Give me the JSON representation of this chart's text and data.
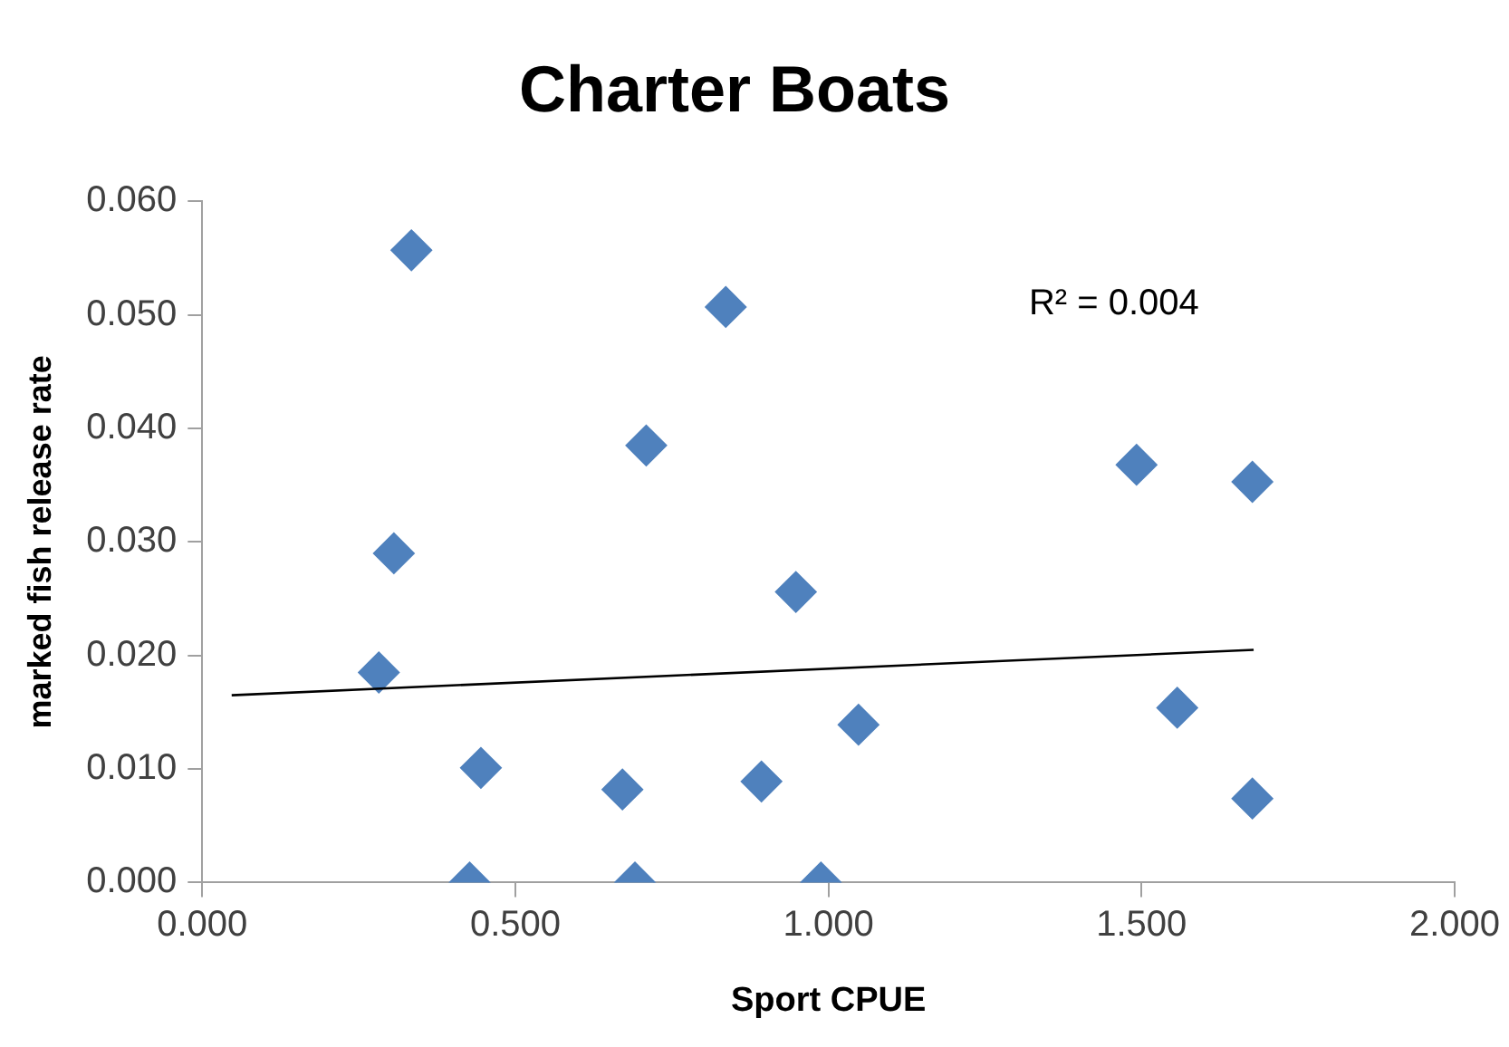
{
  "chart_data": {
    "type": "scatter",
    "title": "Charter Boats",
    "xlabel": "Sport CPUE",
    "ylabel": "marked fish release rate",
    "annotations": [
      "R² = 0.004"
    ],
    "series": [
      {
        "color": "#4f81bd",
        "marker": "diamond",
        "x": [
          0.334,
          0.836,
          0.709,
          0.306,
          0.948,
          0.282,
          0.445,
          0.671,
          0.893,
          0.427,
          0.691,
          0.988,
          1.048,
          1.492,
          1.677,
          1.557,
          1.677
        ],
        "values": [
          0.0557,
          0.0507,
          0.0385,
          0.029,
          0.0256,
          0.0185,
          0.0101,
          0.0082,
          0.0089,
          0,
          0,
          0,
          0.0139,
          0.0368,
          0.0353,
          0.0154,
          0.0074
        ]
      },
      {
        "type": "line",
        "color": "#000000",
        "marker": "none",
        "line_style": "solid",
        "x": [
          0.047,
          1.679
        ],
        "values": [
          0.0165,
          0.0205
        ]
      }
    ],
    "xlim": [
      0,
      2
    ],
    "xticks": [
      {
        "value": 0,
        "label": "0.000"
      },
      {
        "value": 0.5,
        "label": "0.500"
      },
      {
        "value": 1,
        "label": "1.000"
      },
      {
        "value": 1.5,
        "label": "1.500"
      },
      {
        "value": 2,
        "label": "2.000"
      }
    ],
    "ylim": [
      0,
      0.06
    ],
    "yticks": [
      {
        "value": 0,
        "label": "0.000"
      },
      {
        "value": 0.01,
        "label": "0.010"
      },
      {
        "value": 0.02,
        "label": "0.020"
      },
      {
        "value": 0.03,
        "label": "0.030"
      },
      {
        "value": 0.04,
        "label": "0.040"
      },
      {
        "value": 0.05,
        "label": "0.050"
      },
      {
        "value": 0.06,
        "label": "0.060"
      }
    ],
    "grid": false,
    "legend": false
  }
}
